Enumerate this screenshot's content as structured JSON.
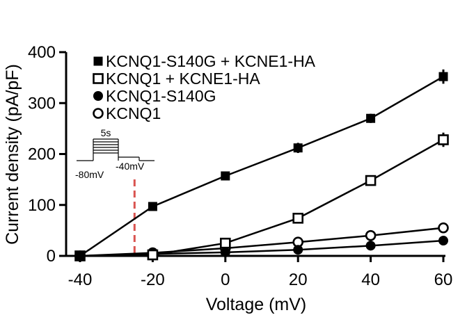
{
  "chart_data": {
    "type": "line",
    "title": "",
    "xlabel": "Voltage (mV)",
    "ylabel": "Current density (pA/pF)",
    "xlim": [
      -40,
      60
    ],
    "ylim": [
      0,
      400
    ],
    "x_ticks": [
      -40,
      -20,
      0,
      20,
      40,
      60
    ],
    "y_ticks": [
      0,
      100,
      200,
      300,
      400
    ],
    "x_tick_labels": [
      "-40",
      "-20",
      "0",
      "20",
      "40",
      "60"
    ],
    "y_tick_labels": [
      "0",
      "100",
      "200",
      "300",
      "400"
    ],
    "x": [
      -40,
      -20,
      0,
      20,
      40,
      60
    ],
    "series": [
      {
        "name": "KCNQ1-S140G + KCNE1-HA",
        "marker": "filled-square",
        "x": [
          -40,
          -20,
          0,
          20,
          40,
          60
        ],
        "values": [
          0,
          97,
          157,
          212,
          270,
          352
        ],
        "errors": [
          0,
          4,
          6,
          10,
          9,
          14
        ]
      },
      {
        "name": "KCNQ1 + KCNE1-HA",
        "marker": "open-square",
        "x": [
          -40,
          -20,
          0,
          20,
          40,
          60
        ],
        "values": [
          0,
          2,
          25,
          74,
          148,
          228
        ],
        "errors": [
          0,
          2,
          3,
          5,
          9,
          14
        ]
      },
      {
        "name": "KCNQ1-S140G",
        "marker": "filled-circle",
        "x": [
          -40,
          -20,
          0,
          20,
          40,
          60
        ],
        "values": [
          0,
          4,
          7,
          12,
          20,
          30
        ],
        "errors": [
          0,
          1,
          2,
          3,
          3,
          4
        ]
      },
      {
        "name": "KCNQ1",
        "marker": "open-circle",
        "x": [
          -40,
          -20,
          0,
          20,
          40,
          60
        ],
        "values": [
          0,
          6,
          15,
          27,
          40,
          55
        ],
        "errors": [
          0,
          1,
          2,
          3,
          3,
          4
        ]
      }
    ],
    "annotations": {
      "dashed_line_x": -25,
      "dashed_line_color": "#d9534f",
      "protocol_duration_label": "5s",
      "protocol_holding_label": "-80mV",
      "protocol_tail_label": "-40mV"
    },
    "legend_placement": "top-left",
    "grid": false
  }
}
